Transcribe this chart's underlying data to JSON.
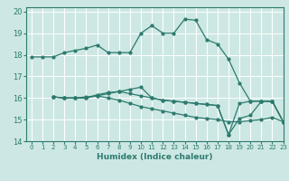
{
  "title": "",
  "xlabel": "Humidex (Indice chaleur)",
  "ylabel": "",
  "bg_color": "#cde8e4",
  "grid_color": "#ffffff",
  "line_color": "#2d7a6e",
  "xlim": [
    -0.5,
    23
  ],
  "ylim": [
    14,
    20.2
  ],
  "yticks": [
    14,
    15,
    16,
    17,
    18,
    19,
    20
  ],
  "xticks": [
    0,
    1,
    2,
    3,
    4,
    5,
    6,
    7,
    8,
    9,
    10,
    11,
    12,
    13,
    14,
    15,
    16,
    17,
    18,
    19,
    20,
    21,
    22,
    23
  ],
  "lines": [
    {
      "x": [
        0,
        1,
        2,
        3,
        4,
        5,
        6,
        7,
        8,
        9,
        10,
        11,
        12,
        13,
        14,
        15,
        16,
        17,
        18,
        19,
        20,
        21,
        22,
        23
      ],
      "y": [
        17.9,
        17.9,
        17.9,
        18.1,
        18.2,
        18.3,
        18.45,
        18.1,
        18.1,
        18.1,
        19.0,
        19.35,
        19.0,
        19.0,
        19.65,
        19.6,
        18.7,
        18.5,
        17.8,
        16.7,
        15.85,
        15.85,
        15.85,
        14.9
      ]
    },
    {
      "x": [
        2,
        3,
        4,
        5,
        6,
        7,
        8,
        9,
        10,
        11,
        12,
        13,
        14,
        15,
        16,
        17,
        18,
        19,
        20,
        21,
        22,
        23
      ],
      "y": [
        16.05,
        16.0,
        16.0,
        16.0,
        16.15,
        16.25,
        16.3,
        16.2,
        16.1,
        16.0,
        15.9,
        15.85,
        15.8,
        15.75,
        15.7,
        15.65,
        14.3,
        15.75,
        15.85,
        15.85,
        15.85,
        14.9
      ]
    },
    {
      "x": [
        2,
        3,
        4,
        5,
        6,
        7,
        8,
        9,
        10,
        11,
        12,
        13,
        14,
        15,
        16,
        17,
        18,
        19,
        20,
        21,
        22,
        23
      ],
      "y": [
        16.05,
        16.0,
        16.0,
        16.0,
        16.1,
        16.0,
        15.9,
        15.75,
        15.6,
        15.5,
        15.4,
        15.3,
        15.2,
        15.1,
        15.05,
        15.0,
        14.9,
        14.9,
        14.95,
        15.0,
        15.1,
        14.9
      ]
    },
    {
      "x": [
        2,
        3,
        4,
        5,
        6,
        7,
        8,
        9,
        10,
        11,
        12,
        13,
        14,
        15,
        16,
        17,
        18,
        19,
        20,
        21,
        22,
        23
      ],
      "y": [
        16.05,
        16.0,
        16.0,
        16.05,
        16.1,
        16.2,
        16.3,
        16.4,
        16.5,
        16.0,
        15.9,
        15.85,
        15.8,
        15.75,
        15.7,
        15.65,
        14.3,
        15.05,
        15.2,
        15.85,
        15.85,
        14.9
      ]
    }
  ]
}
